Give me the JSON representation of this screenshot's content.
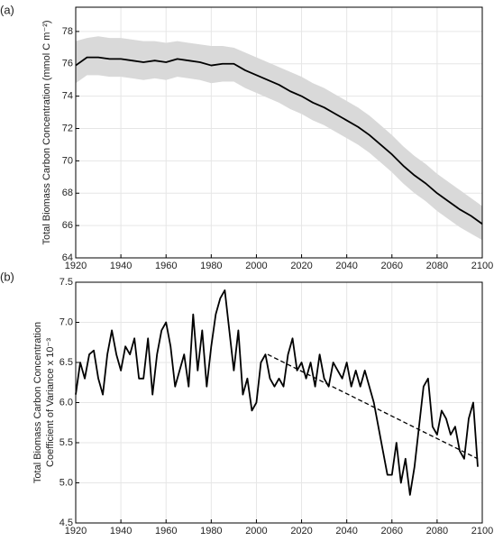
{
  "chart_data": [
    {
      "type": "line",
      "panel_label": "(a)",
      "ylabel": "Total Biomass Carbon Concentration (mmol C m⁻²)",
      "xlim": [
        1920,
        2100
      ],
      "xticks": [
        1920,
        1940,
        1960,
        1980,
        2000,
        2020,
        2040,
        2060,
        2080,
        2100
      ],
      "ylim": [
        64,
        79.5
      ],
      "yticks": [
        64,
        66,
        68,
        70,
        72,
        74,
        76,
        78
      ],
      "grid": true,
      "band": {
        "color": "#d9d9d9",
        "x": [
          1920,
          1925,
          1930,
          1935,
          1940,
          1945,
          1950,
          1955,
          1960,
          1965,
          1970,
          1975,
          1980,
          1985,
          1990,
          1995,
          2000,
          2005,
          2010,
          2015,
          2020,
          2025,
          2030,
          2035,
          2040,
          2045,
          2050,
          2055,
          2060,
          2065,
          2070,
          2075,
          2080,
          2085,
          2090,
          2095,
          2100
        ],
        "upper": [
          77.4,
          77.6,
          77.7,
          77.6,
          77.6,
          77.5,
          77.4,
          77.4,
          77.3,
          77.4,
          77.3,
          77.2,
          77.1,
          77.1,
          77.0,
          76.7,
          76.4,
          76.1,
          75.8,
          75.5,
          75.2,
          74.8,
          74.5,
          74.1,
          73.7,
          73.3,
          72.8,
          72.2,
          71.6,
          70.9,
          70.3,
          69.8,
          69.2,
          68.7,
          68.2,
          67.7,
          67.2
        ],
        "lower": [
          74.8,
          75.3,
          75.3,
          75.2,
          75.2,
          75.1,
          75.0,
          75.1,
          75.0,
          75.2,
          75.1,
          75.0,
          74.8,
          74.9,
          74.9,
          74.5,
          74.2,
          73.9,
          73.6,
          73.2,
          72.9,
          72.5,
          72.2,
          71.8,
          71.4,
          71.0,
          70.5,
          69.9,
          69.3,
          68.6,
          68.0,
          67.5,
          66.9,
          66.4,
          65.9,
          65.5,
          65.1
        ]
      },
      "series": [
        {
          "color": "#000000",
          "x": [
            1920,
            1925,
            1930,
            1935,
            1940,
            1945,
            1950,
            1955,
            1960,
            1965,
            1970,
            1975,
            1980,
            1985,
            1990,
            1995,
            2000,
            2005,
            2010,
            2015,
            2020,
            2025,
            2030,
            2035,
            2040,
            2045,
            2050,
            2055,
            2060,
            2065,
            2070,
            2075,
            2080,
            2085,
            2090,
            2095,
            2100
          ],
          "values": [
            75.9,
            76.4,
            76.4,
            76.3,
            76.3,
            76.2,
            76.1,
            76.2,
            76.1,
            76.3,
            76.2,
            76.1,
            75.9,
            76.0,
            76.0,
            75.6,
            75.3,
            75.0,
            74.7,
            74.3,
            74.0,
            73.6,
            73.3,
            72.9,
            72.5,
            72.1,
            71.6,
            71.0,
            70.4,
            69.7,
            69.1,
            68.6,
            68.0,
            67.5,
            67.0,
            66.6,
            66.1
          ]
        }
      ]
    },
    {
      "type": "line",
      "panel_label": "(b)",
      "ylabel": [
        "Total Biomass Carbon Concentration",
        "Coefficient of Variance x 10⁻³"
      ],
      "xlim": [
        1920,
        2100
      ],
      "xticks": [
        1920,
        1940,
        1960,
        1980,
        2000,
        2020,
        2040,
        2060,
        2080,
        2100
      ],
      "ylim": [
        4.5,
        7.5
      ],
      "yticks": [
        4.5,
        {
          "value": 5,
          "label": "5.0"
        },
        5.5,
        {
          "value": 6,
          "label": "6.0"
        },
        6.5,
        {
          "value": 7,
          "label": "7.0"
        },
        7.5
      ],
      "grid": true,
      "series": [
        {
          "color": "#000000",
          "x": [
            1920,
            1922,
            1924,
            1926,
            1928,
            1930,
            1932,
            1934,
            1936,
            1938,
            1940,
            1942,
            1944,
            1946,
            1948,
            1950,
            1952,
            1954,
            1956,
            1958,
            1960,
            1962,
            1964,
            1966,
            1968,
            1970,
            1972,
            1974,
            1976,
            1978,
            1980,
            1982,
            1984,
            1986,
            1988,
            1990,
            1992,
            1994,
            1996,
            1998,
            2000,
            2002,
            2004,
            2006,
            2008,
            2010,
            2012,
            2014,
            2016,
            2018,
            2020,
            2022,
            2024,
            2026,
            2028,
            2030,
            2032,
            2034,
            2036,
            2038,
            2040,
            2042,
            2044,
            2046,
            2048,
            2050,
            2052,
            2054,
            2056,
            2058,
            2060,
            2062,
            2064,
            2066,
            2068,
            2070,
            2072,
            2074,
            2076,
            2078,
            2080,
            2082,
            2084,
            2086,
            2088,
            2090,
            2092,
            2094,
            2096,
            2098
          ],
          "values": [
            6.1,
            6.5,
            6.3,
            6.6,
            6.65,
            6.3,
            6.1,
            6.6,
            6.9,
            6.6,
            6.4,
            6.7,
            6.6,
            6.8,
            6.3,
            6.3,
            6.8,
            6.1,
            6.6,
            6.9,
            7.0,
            6.7,
            6.2,
            6.4,
            6.6,
            6.2,
            7.1,
            6.4,
            6.9,
            6.2,
            6.7,
            7.1,
            7.3,
            7.4,
            6.9,
            6.4,
            6.9,
            6.1,
            6.3,
            5.9,
            6.0,
            6.5,
            6.6,
            6.3,
            6.2,
            6.3,
            6.2,
            6.6,
            6.8,
            6.4,
            6.5,
            6.3,
            6.5,
            6.2,
            6.6,
            6.3,
            6.2,
            6.5,
            6.4,
            6.3,
            6.5,
            6.2,
            6.4,
            6.2,
            6.4,
            6.2,
            6.0,
            5.7,
            5.4,
            5.1,
            5.1,
            5.5,
            5.0,
            5.3,
            4.85,
            5.2,
            5.7,
            6.2,
            6.3,
            5.7,
            5.6,
            5.9,
            5.8,
            5.6,
            5.7,
            5.4,
            5.3,
            5.8,
            6.0,
            5.2
          ]
        },
        {
          "color": "#000000",
          "dash": true,
          "x": [
            2005,
            2098
          ],
          "values": [
            6.6,
            5.3
          ]
        }
      ]
    }
  ]
}
